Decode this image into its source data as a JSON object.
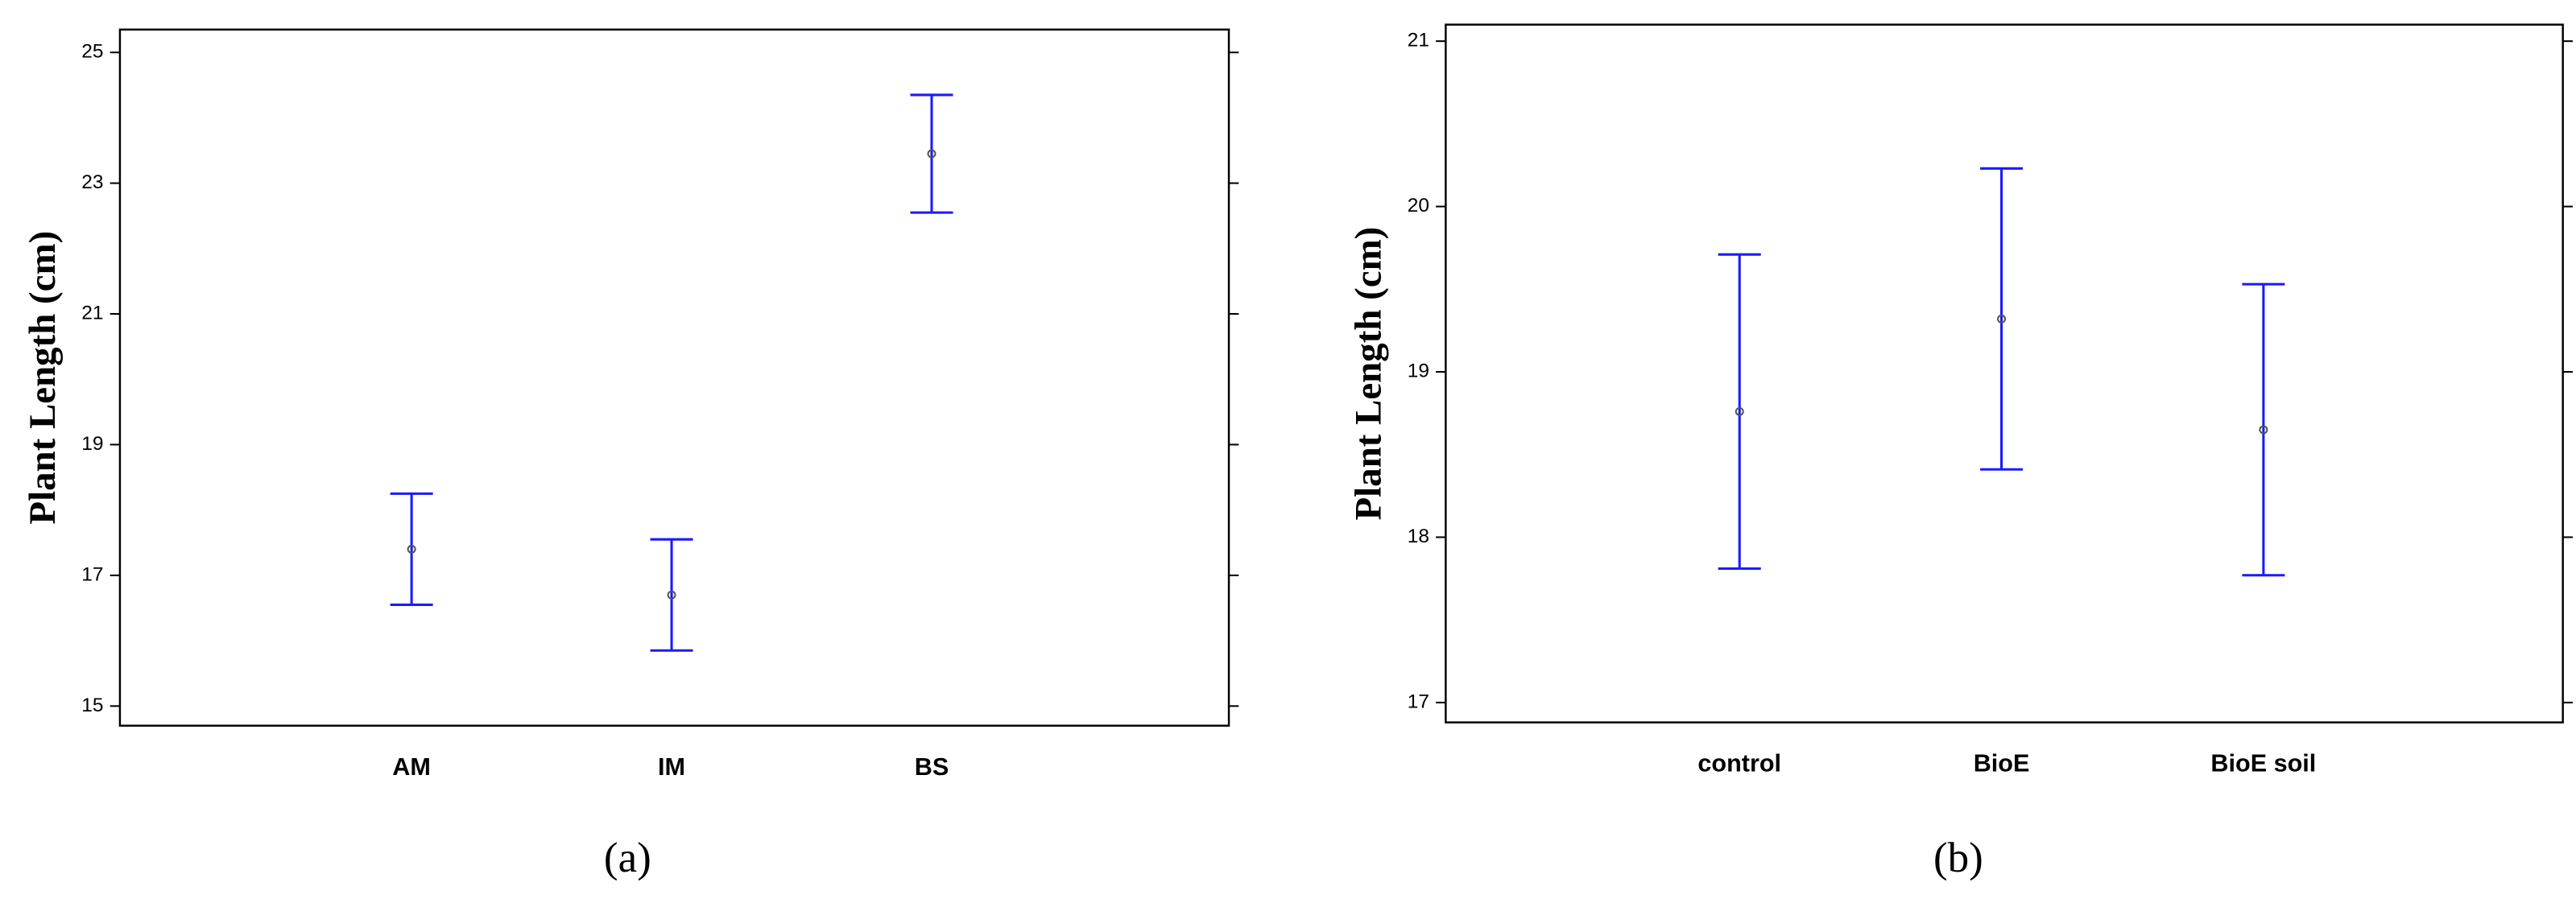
{
  "chart_data": [
    {
      "type": "errorbar",
      "ylabel": "Plant Length (cm)",
      "caption": "(a)",
      "categories": [
        "AM",
        "IM",
        "BS"
      ],
      "values": [
        17.4,
        16.7,
        23.45
      ],
      "errors": [
        0.85,
        0.85,
        0.9
      ],
      "color": "#1a1aff",
      "ylim": [
        14.7,
        25.35
      ],
      "yticks": [
        15,
        17,
        19,
        21,
        23,
        25
      ]
    },
    {
      "type": "errorbar",
      "ylabel": "Plant Length (cm)",
      "caption": "(b)",
      "categories": [
        "control",
        "BioE",
        "BioE soil"
      ],
      "values": [
        18.76,
        19.32,
        18.65
      ],
      "errors": [
        0.95,
        0.91,
        0.88
      ],
      "color": "#1a1aff",
      "ylim": [
        16.88,
        21.1
      ],
      "yticks": [
        17,
        18,
        19,
        20,
        21
      ]
    }
  ]
}
